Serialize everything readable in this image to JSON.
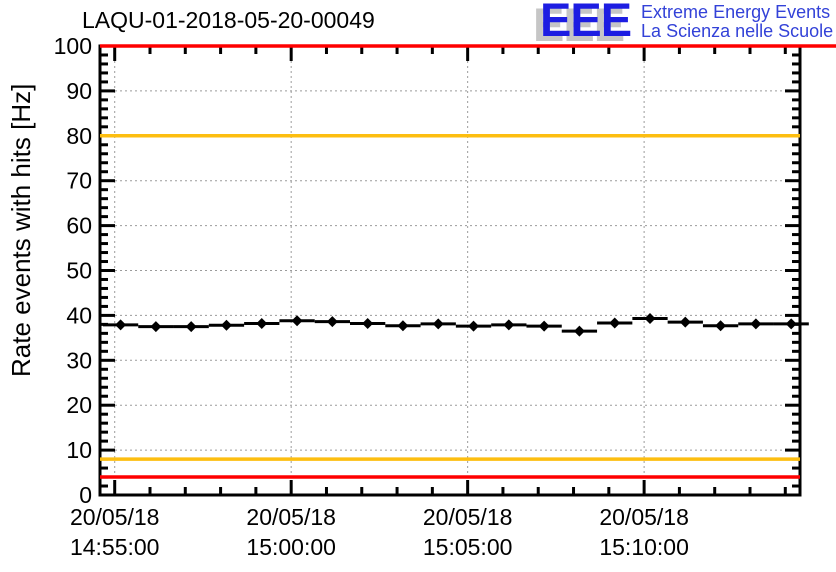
{
  "header": {
    "title": "LAQU-01-2018-05-20-00049",
    "logo": {
      "acronym": "EEE",
      "line1": "Extreme Energy Events",
      "line2": "La Scienza nelle Scuole"
    }
  },
  "chart_data": {
    "type": "line",
    "title": "LAQU-01-2018-05-20-00049",
    "xlabel": "",
    "ylabel": "Rate events with hits [Hz]",
    "ylim": [
      0,
      100
    ],
    "y_major_tick_step": 10,
    "y_minor_tick_step": 2,
    "grid": true,
    "x_axis": {
      "date_label": "20/05/18",
      "start": "14:54:35",
      "end": "15:14:25",
      "major_ticks": [
        "14:55:00",
        "15:00:00",
        "15:05:00",
        "15:10:00"
      ],
      "minor_tick_seconds": 60
    },
    "series": [
      {
        "name": "rate-events-with-hits",
        "marker": "diamond",
        "color": "#000000",
        "bin_halfwidth_seconds": 30,
        "x_times": [
          "14:55:10",
          "14:56:10",
          "14:57:10",
          "14:58:10",
          "14:59:10",
          "15:00:10",
          "15:01:10",
          "15:02:10",
          "15:03:10",
          "15:04:10",
          "15:05:10",
          "15:06:10",
          "15:07:10",
          "15:08:10",
          "15:09:10",
          "15:10:10",
          "15:11:10",
          "15:12:10",
          "15:13:10",
          "15:14:10"
        ],
        "values": [
          37.9,
          37.5,
          37.5,
          37.8,
          38.2,
          38.8,
          38.6,
          38.2,
          37.7,
          38.1,
          37.6,
          37.9,
          37.6,
          36.5,
          38.3,
          39.3,
          38.5,
          37.7,
          38.1,
          38.1
        ]
      }
    ],
    "thresholds": [
      {
        "value": 100,
        "color": "#ff0000",
        "full_width": true
      },
      {
        "value": 80,
        "color": "#fdbe10",
        "full_width": false
      },
      {
        "value": 8,
        "color": "#fdbe10",
        "full_width": false
      },
      {
        "value": 4,
        "color": "#ff0000",
        "full_width": false
      }
    ],
    "colors": {
      "grid": "#9b9b9b",
      "axis": "#000000",
      "marker": "#000000",
      "alarm": "#ff0000",
      "warning": "#fdbe10"
    },
    "legend_position": "none"
  }
}
